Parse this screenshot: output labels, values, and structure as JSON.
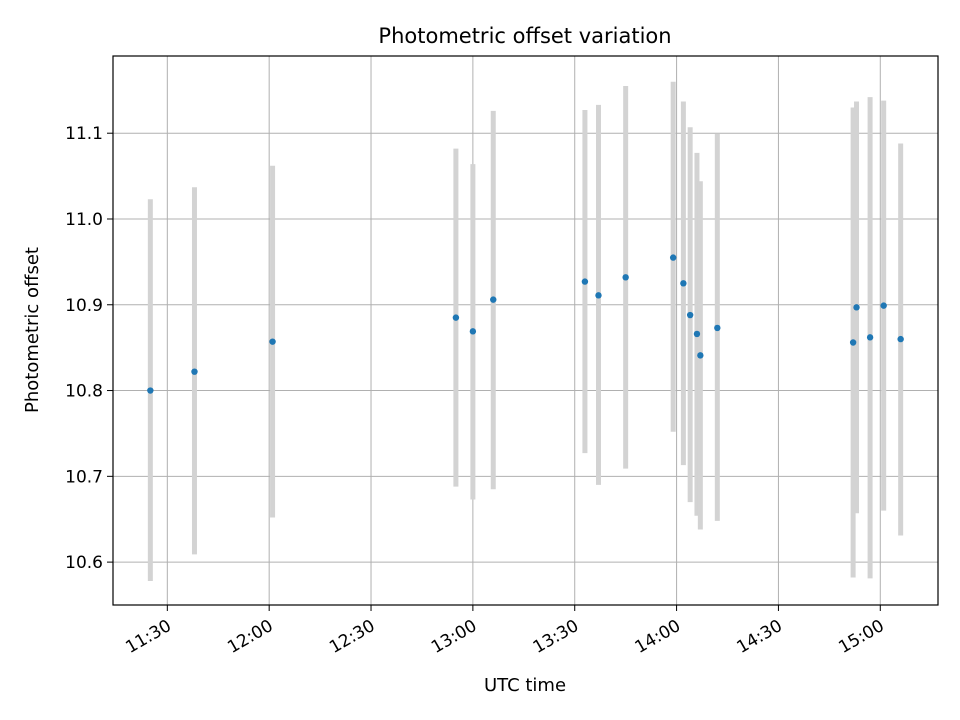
{
  "chart_data": {
    "type": "scatter",
    "title": "Photometric offset variation",
    "xlabel": "UTC time",
    "ylabel": "Photometric offset",
    "xlim": [
      "11:14",
      "15:17"
    ],
    "ylim": [
      10.55,
      11.19
    ],
    "grid": true,
    "x_ticks": [
      "11:30",
      "12:00",
      "12:30",
      "13:00",
      "13:30",
      "14:00",
      "14:30",
      "15:00"
    ],
    "y_ticks": [
      "10.6",
      "10.7",
      "10.8",
      "10.9",
      "11.0",
      "11.1"
    ],
    "colors": {
      "point": "#1f77b4",
      "error_bar": "#d3d3d3",
      "grid": "#b0b0b0"
    },
    "points": [
      {
        "x": "11:25",
        "y": 10.8,
        "lo": 10.578,
        "hi": 11.023
      },
      {
        "x": "11:38",
        "y": 10.822,
        "lo": 10.609,
        "hi": 11.037
      },
      {
        "x": "12:01",
        "y": 10.857,
        "lo": 10.652,
        "hi": 11.062
      },
      {
        "x": "12:55",
        "y": 10.885,
        "lo": 10.688,
        "hi": 11.082
      },
      {
        "x": "13:00",
        "y": 10.869,
        "lo": 10.673,
        "hi": 11.064
      },
      {
        "x": "13:06",
        "y": 10.906,
        "lo": 10.685,
        "hi": 11.126
      },
      {
        "x": "13:33",
        "y": 10.927,
        "lo": 10.727,
        "hi": 11.127
      },
      {
        "x": "13:37",
        "y": 10.911,
        "lo": 10.69,
        "hi": 11.133
      },
      {
        "x": "13:45",
        "y": 10.932,
        "lo": 10.709,
        "hi": 11.155
      },
      {
        "x": "13:59",
        "y": 10.955,
        "lo": 10.752,
        "hi": 11.16
      },
      {
        "x": "14:02",
        "y": 10.925,
        "lo": 10.713,
        "hi": 11.137
      },
      {
        "x": "14:04",
        "y": 10.888,
        "lo": 10.67,
        "hi": 11.107
      },
      {
        "x": "14:06",
        "y": 10.866,
        "lo": 10.654,
        "hi": 11.077
      },
      {
        "x": "14:07",
        "y": 10.841,
        "lo": 10.638,
        "hi": 11.044
      },
      {
        "x": "14:12",
        "y": 10.873,
        "lo": 10.648,
        "hi": 11.099
      },
      {
        "x": "14:52",
        "y": 10.856,
        "lo": 10.582,
        "hi": 11.13
      },
      {
        "x": "14:53",
        "y": 10.897,
        "lo": 10.657,
        "hi": 11.137
      },
      {
        "x": "14:57",
        "y": 10.862,
        "lo": 10.581,
        "hi": 11.142
      },
      {
        "x": "15:01",
        "y": 10.899,
        "lo": 10.66,
        "hi": 11.138
      },
      {
        "x": "15:06",
        "y": 10.86,
        "lo": 10.631,
        "hi": 11.088
      }
    ]
  }
}
